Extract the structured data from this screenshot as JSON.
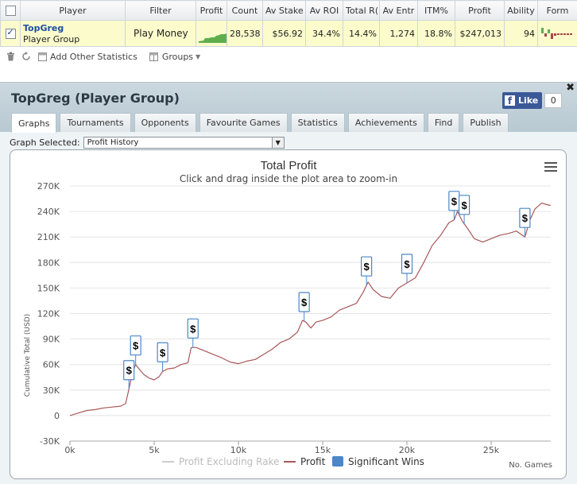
{
  "table": {
    "headers": [
      "Player",
      "Filter",
      "Profit",
      "Count",
      "Av Stake",
      "Av ROI",
      "Total R(",
      "Av Entr",
      "ITM%",
      "Profit",
      "Ability",
      "Form"
    ],
    "row": {
      "player_name": "TopGreg",
      "player_sub": "Player Group",
      "filter": "Play Money",
      "count": "28,538",
      "av_stake": "$56.92",
      "av_roi": "34.4%",
      "total_roi": "14.4%",
      "av_entrants": "1,274",
      "itm": "18.8%",
      "profit": "$247,013",
      "ability": "94"
    }
  },
  "toolbar": {
    "add_stats_label": "Add Other Statistics",
    "groups_label": "Groups"
  },
  "panel": {
    "title": "TopGreg (Player Group)",
    "fb_like_label": "Like",
    "fb_count": "0",
    "tabs": [
      "Graphs",
      "Tournaments",
      "Opponents",
      "Favourite Games",
      "Statistics",
      "Achievements",
      "Find",
      "Publish"
    ],
    "graph_selected_label": "Graph Selected:",
    "graph_selected_value": "Profit History"
  },
  "chart_data": {
    "type": "line",
    "title": "Total Profit",
    "subtitle": "Click and drag inside the plot area to zoom-in",
    "ylabel": "Cumulative Total (USD)",
    "xlabel": "No. Games",
    "ylim": [
      -30000,
      270000
    ],
    "xlim": [
      0,
      28538
    ],
    "y_ticks": [
      "270K",
      "240K",
      "210K",
      "180K",
      "150K",
      "120K",
      "90K",
      "60K",
      "30K",
      "0",
      "-30K"
    ],
    "x_ticks": [
      "0k",
      "5k",
      "10k",
      "15k",
      "20k",
      "25k"
    ],
    "legend": [
      "Profit Excluding Rake",
      "Profit",
      "Significant Wins"
    ],
    "legend_position": "bottom",
    "colors": {
      "profit": "#a8585a",
      "excl_rake": "#cccccc",
      "significant": "#4a86c8"
    },
    "series": [
      {
        "name": "Profit",
        "x": [
          0,
          500,
          1000,
          1500,
          2000,
          2500,
          3000,
          3300,
          3500,
          3700,
          3900,
          4100,
          4400,
          4700,
          5000,
          5300,
          5500,
          5800,
          6200,
          6600,
          7000,
          7200,
          7500,
          8000,
          8500,
          9000,
          9500,
          10000,
          10500,
          11000,
          11500,
          12000,
          12500,
          13000,
          13500,
          13800,
          14000,
          14300,
          14600,
          15000,
          15500,
          16000,
          16500,
          17000,
          17400,
          17700,
          18000,
          18500,
          19000,
          19500,
          20000,
          20500,
          21000,
          21500,
          22000,
          22500,
          22800,
          23000,
          23300,
          23600,
          24000,
          24500,
          25000,
          25500,
          26000,
          26500,
          27000,
          27300,
          27600,
          28000,
          28300,
          28538
        ],
        "values": [
          0,
          3000,
          6000,
          7000,
          9000,
          10000,
          11000,
          14000,
          31000,
          50000,
          60000,
          55000,
          48000,
          44000,
          42000,
          46000,
          52000,
          55000,
          56000,
          60000,
          62000,
          80000,
          80000,
          76000,
          72000,
          68000,
          63000,
          61000,
          64000,
          66000,
          72000,
          78000,
          86000,
          90000,
          98000,
          112000,
          110000,
          103000,
          110000,
          112000,
          116000,
          124000,
          128000,
          132000,
          145000,
          157000,
          148000,
          140000,
          138000,
          150000,
          156000,
          162000,
          180000,
          200000,
          212000,
          227000,
          230000,
          240000,
          228000,
          220000,
          208000,
          204000,
          208000,
          212000,
          214000,
          217000,
          210000,
          230000,
          243000,
          250000,
          248000,
          247000
        ]
      }
    ],
    "significant_wins_x": [
      3500,
      3900,
      5500,
      7300,
      13900,
      17600,
      20000,
      22800,
      23400,
      27000
    ]
  }
}
